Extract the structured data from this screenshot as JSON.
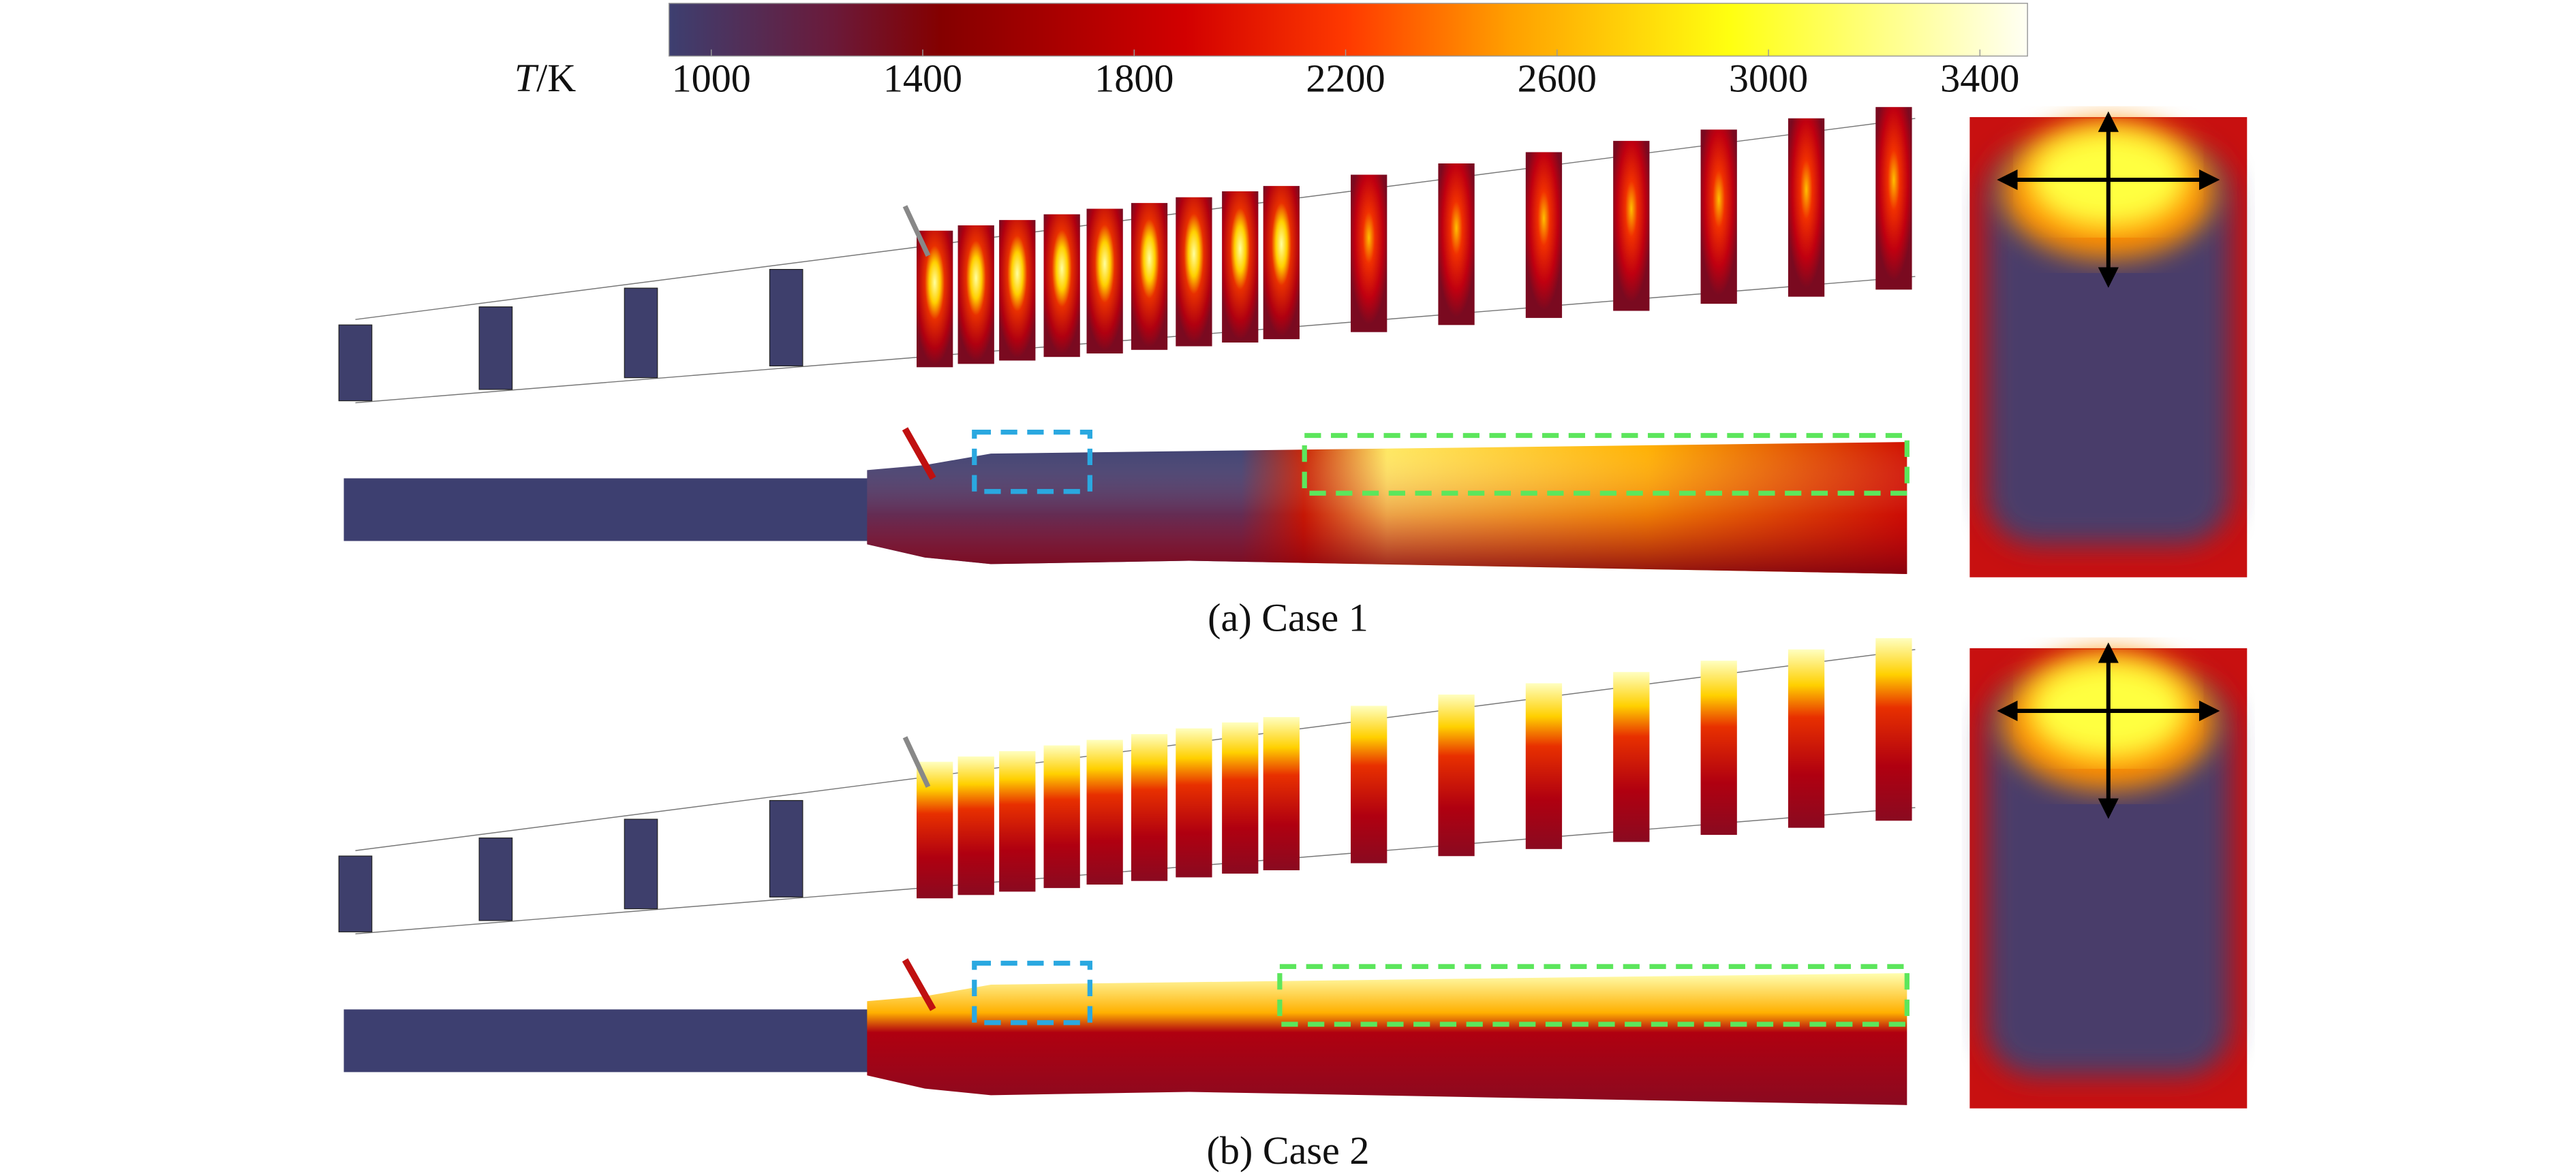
{
  "colorbar": {
    "label_symbol": "T",
    "label_unit": "/K",
    "range": [
      920,
      3490
    ],
    "ticks": [
      1000,
      1400,
      1800,
      2200,
      2600,
      3000,
      3400
    ]
  },
  "panels": [
    {
      "caption": "(a) Case 1"
    },
    {
      "caption": "(b) Case 2"
    }
  ]
}
